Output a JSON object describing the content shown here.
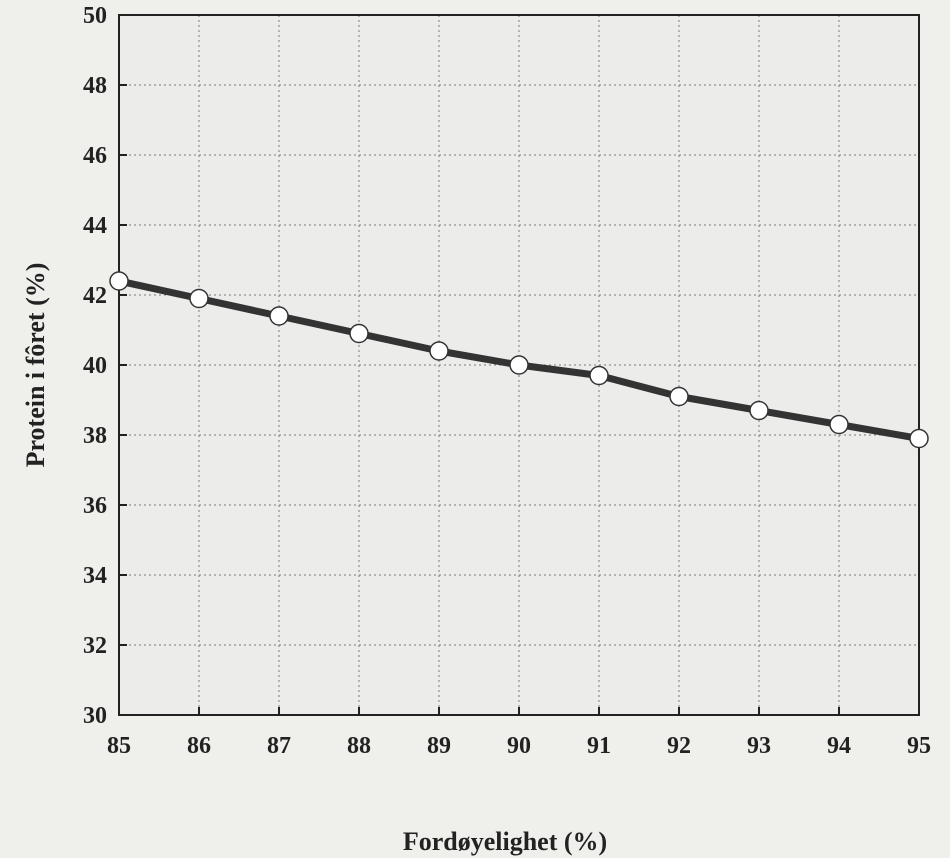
{
  "chart_data": {
    "type": "line",
    "title": "",
    "xlabel": "Fordøyelighet (%)",
    "ylabel": "Protein i fôret (%)",
    "xlim": [
      85,
      95
    ],
    "ylim": [
      30,
      50
    ],
    "xticks": [
      85,
      86,
      87,
      88,
      89,
      90,
      91,
      92,
      93,
      94,
      95
    ],
    "yticks": [
      30,
      32,
      34,
      36,
      38,
      40,
      42,
      44,
      46,
      48,
      50
    ],
    "grid": true,
    "legend": "none",
    "series": [
      {
        "x": [
          85,
          86,
          87,
          88,
          89,
          90,
          91,
          92,
          93,
          94,
          95
        ],
        "values": [
          42.4,
          41.9,
          41.4,
          40.9,
          40.4,
          40.0,
          39.7,
          39.1,
          38.7,
          38.3,
          37.9
        ]
      }
    ],
    "colors": {
      "line": "#333333",
      "marker_fill": "#ffffff",
      "marker_stroke": "#333333",
      "plot_bg": "#ececea",
      "grid": "#7a7a7a"
    }
  }
}
